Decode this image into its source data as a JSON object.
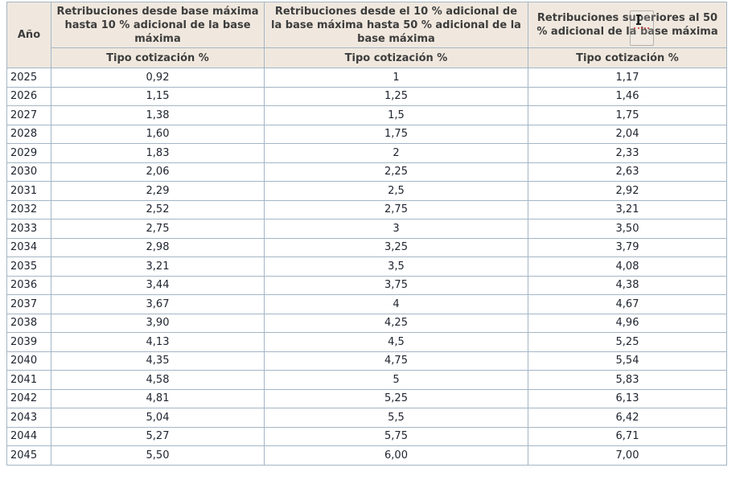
{
  "table": {
    "year_header": "Año",
    "columns": [
      {
        "title": "Retribuciones desde base máxima hasta 10 % adicional de la base máxima",
        "subtitle": "Tipo cotización %"
      },
      {
        "title": "Retribuciones desde el 10 % adicional de la base máxima hasta 50 % adicional de la base máxima",
        "subtitle": "Tipo cotización %"
      },
      {
        "title": "Retribuciones superiores al 50 % adicional de la base máxima",
        "subtitle": "Tipo cotización %"
      }
    ],
    "rows": [
      {
        "year": "2025",
        "values": [
          "0,92",
          "1",
          "1,17"
        ]
      },
      {
        "year": "2026",
        "values": [
          "1,15",
          "1,25",
          "1,46"
        ]
      },
      {
        "year": "2027",
        "values": [
          "1,38",
          "1,5",
          "1,75"
        ]
      },
      {
        "year": "2028",
        "values": [
          "1,60",
          "1,75",
          "2,04"
        ]
      },
      {
        "year": "2029",
        "values": [
          "1,83",
          "2",
          "2,33"
        ]
      },
      {
        "year": "2030",
        "values": [
          "2,06",
          "2,25",
          "2,63"
        ]
      },
      {
        "year": "2031",
        "values": [
          "2,29",
          "2,5",
          "2,92"
        ]
      },
      {
        "year": "2032",
        "values": [
          "2,52",
          "2,75",
          "3,21"
        ]
      },
      {
        "year": "2033",
        "values": [
          "2,75",
          "3",
          "3,50"
        ]
      },
      {
        "year": "2034",
        "values": [
          "2,98",
          "3,25",
          "3,79"
        ]
      },
      {
        "year": "2035",
        "values": [
          "3,21",
          "3,5",
          "4,08"
        ]
      },
      {
        "year": "2036",
        "values": [
          "3,44",
          "3,75",
          "4,38"
        ]
      },
      {
        "year": "2037",
        "values": [
          "3,67",
          "4",
          "4,67"
        ]
      },
      {
        "year": "2038",
        "values": [
          "3,90",
          "4,25",
          "4,96"
        ]
      },
      {
        "year": "2039",
        "values": [
          "4,13",
          "4,5",
          "5,25"
        ]
      },
      {
        "year": "2040",
        "values": [
          "4,35",
          "4,75",
          "5,54"
        ]
      },
      {
        "year": "2041",
        "values": [
          "4,58",
          "5",
          "5,83"
        ]
      },
      {
        "year": "2042",
        "values": [
          "4,81",
          "5,25",
          "6,13"
        ]
      },
      {
        "year": "2043",
        "values": [
          "5,04",
          "5,5",
          "6,42"
        ]
      },
      {
        "year": "2044",
        "values": [
          "5,27",
          "5,75",
          "6,71"
        ]
      },
      {
        "year": "2045",
        "values": [
          "5,50",
          "6,00",
          "7,00"
        ]
      }
    ]
  },
  "colors": {
    "header_bg": "#f0e8de",
    "header_text": "#3d3d3d",
    "cell_border": "#a4b6c6",
    "outer_border": "#999999",
    "data_text": "#202530"
  }
}
